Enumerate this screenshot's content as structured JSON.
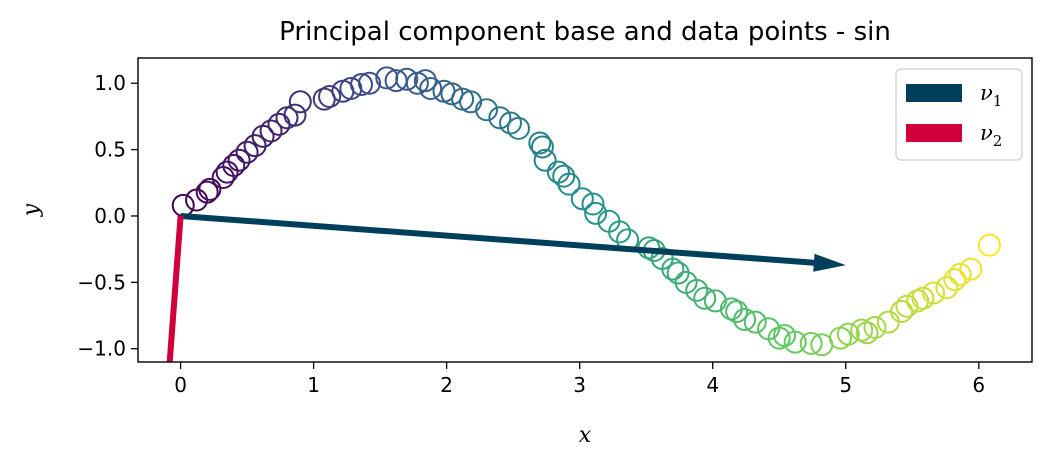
{
  "chart_data": {
    "type": "scatter",
    "title": "Principal component base and data points - sin",
    "xlabel": "x",
    "ylabel": "y",
    "xlim": [
      -0.32,
      6.4
    ],
    "ylim": [
      -1.1,
      1.19
    ],
    "xticks": [
      0,
      1,
      2,
      3,
      4,
      5,
      6
    ],
    "yticks": [
      -1.0,
      -0.5,
      0.0,
      0.5,
      1.0
    ],
    "xtick_labels": [
      "0",
      "1",
      "2",
      "3",
      "4",
      "5",
      "6"
    ],
    "ytick_labels": [
      "−1.0",
      "−0.5",
      "0.0",
      "0.5",
      "1.0"
    ],
    "grid": false,
    "legend_position": "top-right",
    "series": [
      {
        "marker": "hollow-circle",
        "colormap": "viridis",
        "x": [
          0.02,
          0.12,
          0.2,
          0.22,
          0.32,
          0.35,
          0.4,
          0.44,
          0.5,
          0.56,
          0.62,
          0.68,
          0.74,
          0.8,
          0.86,
          0.9,
          1.08,
          1.12,
          1.22,
          1.28,
          1.36,
          1.42,
          1.55,
          1.62,
          1.7,
          1.78,
          1.84,
          1.88,
          1.98,
          2.04,
          2.12,
          2.18,
          2.3,
          2.4,
          2.48,
          2.54,
          2.7,
          2.72,
          2.74,
          2.84,
          2.88,
          2.92,
          3.02,
          3.1,
          3.12,
          3.22,
          3.3,
          3.36,
          3.52,
          3.56,
          3.62,
          3.7,
          3.74,
          3.8,
          3.88,
          3.94,
          4.02,
          4.14,
          4.18,
          4.24,
          4.32,
          4.42,
          4.5,
          4.54,
          4.62,
          4.74,
          4.82,
          4.96,
          5.02,
          5.12,
          5.16,
          5.22,
          5.32,
          5.42,
          5.46,
          5.54,
          5.58,
          5.66,
          5.76,
          5.82,
          5.86,
          5.94,
          6.08
        ],
        "y": [
          0.08,
          0.12,
          0.18,
          0.2,
          0.29,
          0.33,
          0.38,
          0.42,
          0.48,
          0.53,
          0.6,
          0.64,
          0.69,
          0.74,
          0.76,
          0.86,
          0.88,
          0.9,
          0.94,
          0.96,
          0.99,
          1.0,
          1.04,
          1.02,
          1.03,
          1.0,
          1.02,
          0.96,
          0.94,
          0.92,
          0.88,
          0.86,
          0.8,
          0.74,
          0.7,
          0.66,
          0.55,
          0.52,
          0.42,
          0.33,
          0.3,
          0.24,
          0.13,
          0.09,
          0.02,
          -0.04,
          -0.12,
          -0.18,
          -0.24,
          -0.26,
          -0.32,
          -0.4,
          -0.43,
          -0.5,
          -0.56,
          -0.62,
          -0.64,
          -0.7,
          -0.72,
          -0.78,
          -0.8,
          -0.85,
          -0.92,
          -0.9,
          -0.95,
          -0.96,
          -0.97,
          -0.92,
          -0.89,
          -0.86,
          -0.88,
          -0.84,
          -0.8,
          -0.72,
          -0.68,
          -0.64,
          -0.62,
          -0.58,
          -0.54,
          -0.48,
          -0.44,
          -0.4,
          -0.22
        ]
      }
    ],
    "vectors": [
      {
        "name": "ν",
        "subscript": "1",
        "color": "#003f5c",
        "from": [
          0,
          0
        ],
        "to": [
          5.0,
          -0.37
        ]
      },
      {
        "name": "ν",
        "subscript": "2",
        "color": "#d0003a",
        "from": [
          0,
          0
        ],
        "to": [
          -0.1,
          -1.35
        ]
      }
    ]
  }
}
